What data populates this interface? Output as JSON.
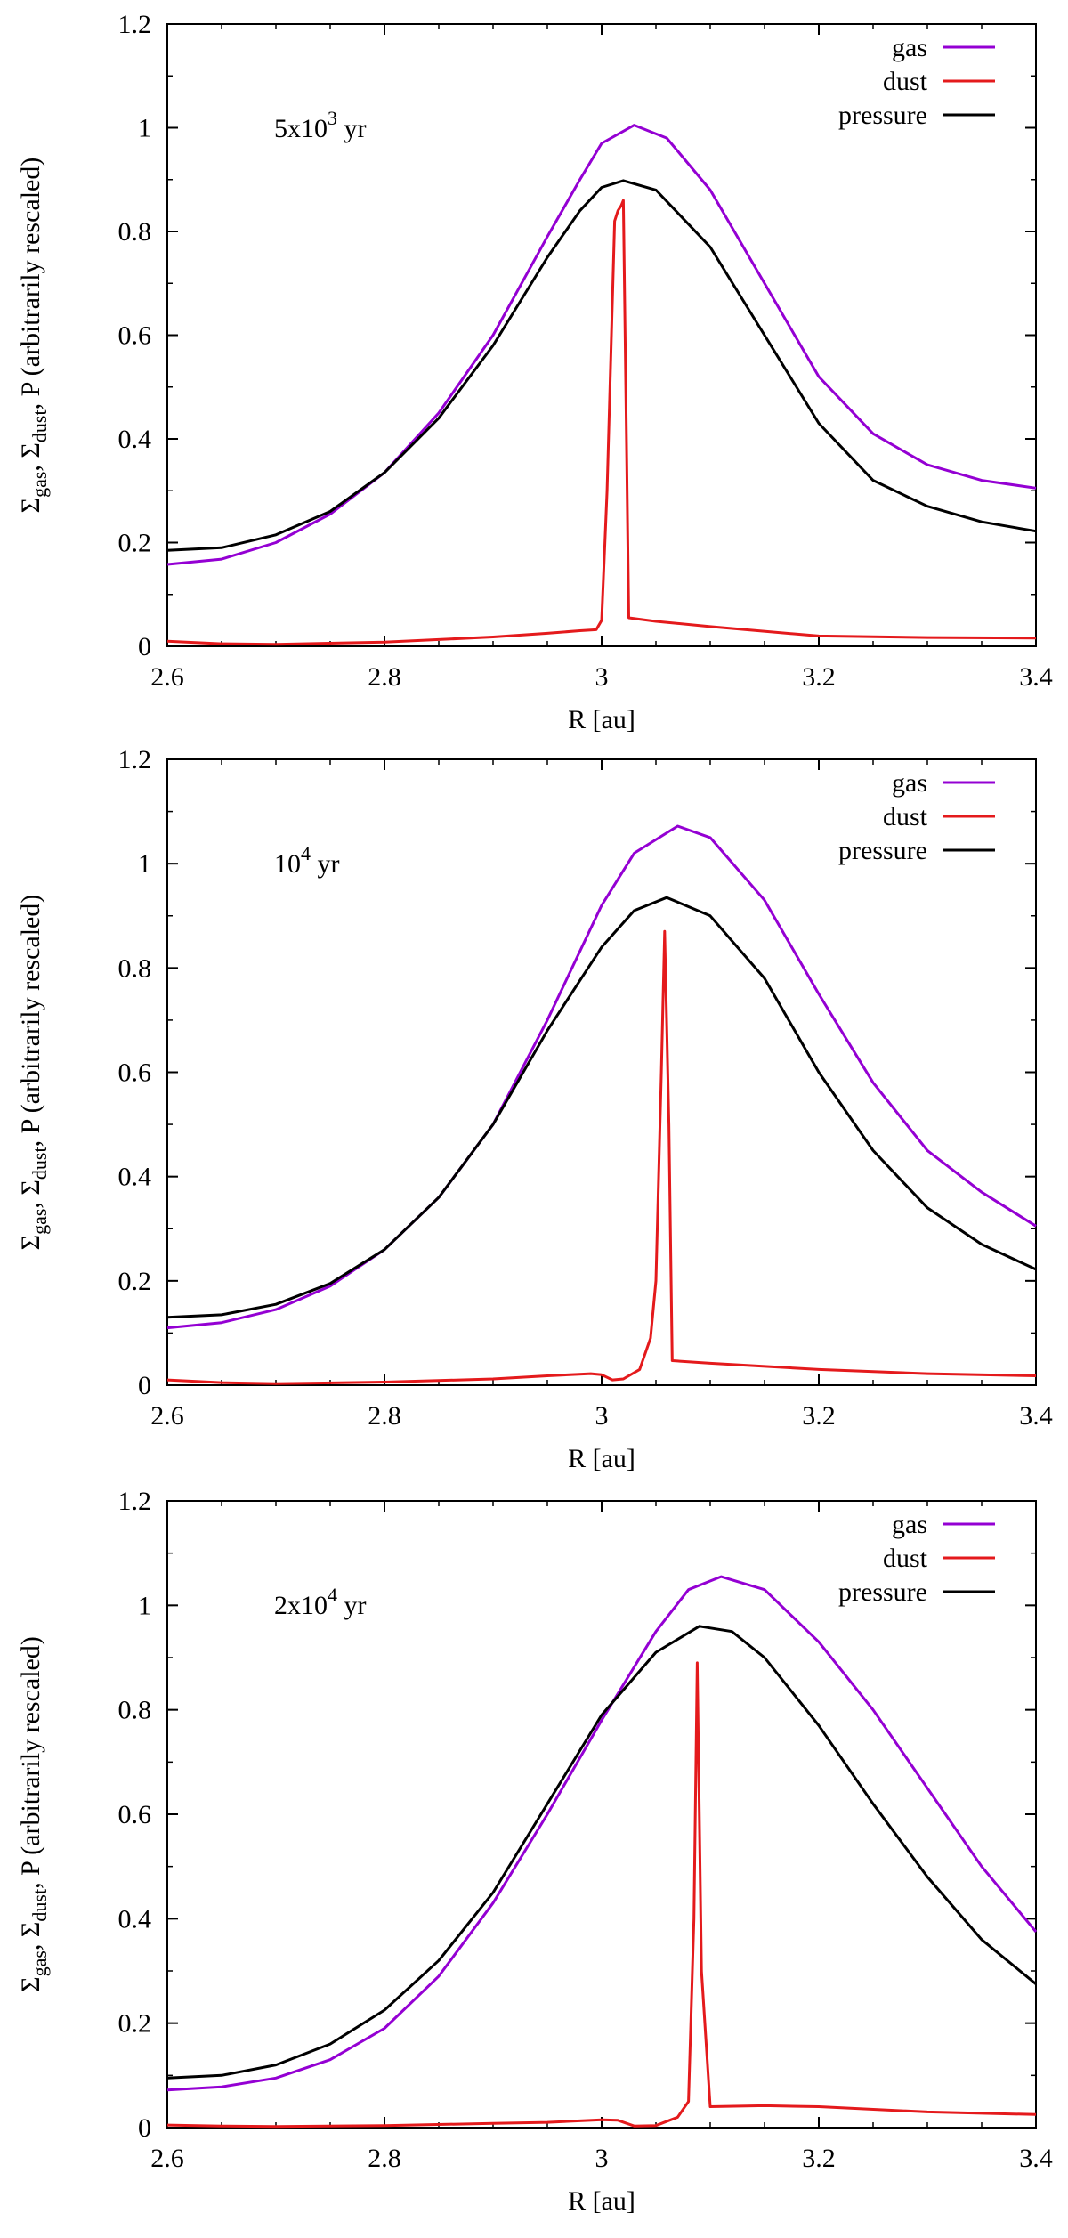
{
  "figure": {
    "description_free": true
  },
  "chart_data": [
    {
      "type": "line",
      "annotation": {
        "base": "5x10",
        "exp": "3",
        "unit": " yr"
      },
      "xlabel": "R [au]",
      "ylabel": {
        "sigma": "Σ",
        "gas": "gas",
        "dust": "dust",
        "rest": ", P (arbitrarily rescaled)"
      },
      "xlim": [
        2.6,
        3.4
      ],
      "ylim": [
        0,
        1.2
      ],
      "xticks": [
        2.6,
        2.8,
        3.0,
        3.2,
        3.4
      ],
      "xtick_labels": [
        "2.6",
        "2.8",
        "3",
        "3.2",
        "3.4"
      ],
      "yticks": [
        0,
        0.2,
        0.4,
        0.6,
        0.8,
        1.0,
        1.2
      ],
      "ytick_labels": [
        "0",
        "0.2",
        "0.4",
        "0.6",
        "0.8",
        "1",
        "1.2"
      ],
      "series": [
        {
          "name": "gas",
          "color": "#9400d3",
          "x": [
            2.6,
            2.65,
            2.7,
            2.75,
            2.8,
            2.85,
            2.9,
            2.95,
            2.98,
            3.0,
            3.03,
            3.06,
            3.1,
            3.15,
            3.2,
            3.25,
            3.3,
            3.35,
            3.4
          ],
          "y": [
            0.158,
            0.168,
            0.2,
            0.255,
            0.335,
            0.45,
            0.6,
            0.79,
            0.9,
            0.97,
            1.005,
            0.98,
            0.88,
            0.7,
            0.52,
            0.41,
            0.35,
            0.32,
            0.305
          ]
        },
        {
          "name": "dust",
          "color": "#e41a1c",
          "x": [
            2.6,
            2.65,
            2.7,
            2.8,
            2.9,
            2.95,
            2.98,
            2.995,
            3.0,
            3.005,
            3.012,
            3.015,
            3.018,
            3.02,
            3.025,
            3.05,
            3.1,
            3.2,
            3.3,
            3.4
          ],
          "y": [
            0.01,
            0.005,
            0.004,
            0.008,
            0.018,
            0.025,
            0.03,
            0.032,
            0.05,
            0.3,
            0.82,
            0.84,
            0.85,
            0.86,
            0.055,
            0.048,
            0.038,
            0.02,
            0.017,
            0.016
          ]
        },
        {
          "name": "pressure",
          "color": "#000000",
          "x": [
            2.6,
            2.65,
            2.7,
            2.75,
            2.8,
            2.85,
            2.9,
            2.95,
            2.98,
            3.0,
            3.02,
            3.05,
            3.1,
            3.15,
            3.2,
            3.25,
            3.3,
            3.35,
            3.4
          ],
          "y": [
            0.185,
            0.19,
            0.215,
            0.26,
            0.335,
            0.44,
            0.58,
            0.75,
            0.84,
            0.885,
            0.898,
            0.88,
            0.77,
            0.6,
            0.43,
            0.32,
            0.27,
            0.24,
            0.222
          ]
        }
      ]
    },
    {
      "type": "line",
      "annotation": {
        "base": "10",
        "exp": "4",
        "unit": " yr"
      },
      "xlabel": "R [au]",
      "ylabel": {
        "sigma": "Σ",
        "gas": "gas",
        "dust": "dust",
        "rest": ", P (arbitrarily rescaled)"
      },
      "xlim": [
        2.6,
        3.4
      ],
      "ylim": [
        0,
        1.2
      ],
      "xticks": [
        2.6,
        2.8,
        3.0,
        3.2,
        3.4
      ],
      "xtick_labels": [
        "2.6",
        "2.8",
        "3",
        "3.2",
        "3.4"
      ],
      "yticks": [
        0,
        0.2,
        0.4,
        0.6,
        0.8,
        1.0,
        1.2
      ],
      "ytick_labels": [
        "0",
        "0.2",
        "0.4",
        "0.6",
        "0.8",
        "1",
        "1.2"
      ],
      "series": [
        {
          "name": "gas",
          "color": "#9400d3",
          "x": [
            2.6,
            2.65,
            2.7,
            2.75,
            2.8,
            2.85,
            2.9,
            2.95,
            3.0,
            3.03,
            3.07,
            3.1,
            3.15,
            3.2,
            3.25,
            3.3,
            3.35,
            3.4
          ],
          "y": [
            0.11,
            0.12,
            0.145,
            0.19,
            0.26,
            0.36,
            0.5,
            0.7,
            0.92,
            1.02,
            1.072,
            1.05,
            0.93,
            0.75,
            0.58,
            0.45,
            0.37,
            0.305
          ]
        },
        {
          "name": "dust",
          "color": "#e41a1c",
          "x": [
            2.6,
            2.65,
            2.7,
            2.8,
            2.9,
            2.95,
            2.99,
            3.0,
            3.01,
            3.02,
            3.035,
            3.045,
            3.05,
            3.055,
            3.058,
            3.062,
            3.065,
            3.1,
            3.2,
            3.3,
            3.4
          ],
          "y": [
            0.01,
            0.005,
            0.003,
            0.006,
            0.012,
            0.018,
            0.022,
            0.02,
            0.01,
            0.012,
            0.03,
            0.09,
            0.2,
            0.6,
            0.87,
            0.5,
            0.047,
            0.042,
            0.03,
            0.022,
            0.018
          ]
        },
        {
          "name": "pressure",
          "color": "#000000",
          "x": [
            2.6,
            2.65,
            2.7,
            2.75,
            2.8,
            2.85,
            2.9,
            2.95,
            3.0,
            3.03,
            3.06,
            3.1,
            3.15,
            3.2,
            3.25,
            3.3,
            3.35,
            3.4
          ],
          "y": [
            0.13,
            0.135,
            0.155,
            0.195,
            0.26,
            0.36,
            0.5,
            0.68,
            0.84,
            0.91,
            0.935,
            0.9,
            0.78,
            0.6,
            0.45,
            0.34,
            0.27,
            0.222
          ]
        }
      ]
    },
    {
      "type": "line",
      "annotation": {
        "base": "2x10",
        "exp": "4",
        "unit": " yr"
      },
      "xlabel": "R [au]",
      "ylabel": {
        "sigma": "Σ",
        "gas": "gas",
        "dust": "dust",
        "rest": ", P (arbitrarily rescaled)"
      },
      "xlim": [
        2.6,
        3.4
      ],
      "ylim": [
        0,
        1.2
      ],
      "xticks": [
        2.6,
        2.8,
        3.0,
        3.2,
        3.4
      ],
      "xtick_labels": [
        "2.6",
        "2.8",
        "3",
        "3.2",
        "3.4"
      ],
      "yticks": [
        0,
        0.2,
        0.4,
        0.6,
        0.8,
        1.0,
        1.2
      ],
      "ytick_labels": [
        "0",
        "0.2",
        "0.4",
        "0.6",
        "0.8",
        "1",
        "1.2"
      ],
      "series": [
        {
          "name": "gas",
          "color": "#9400d3",
          "x": [
            2.6,
            2.65,
            2.7,
            2.75,
            2.8,
            2.85,
            2.9,
            2.95,
            3.0,
            3.05,
            3.08,
            3.11,
            3.15,
            3.2,
            3.25,
            3.3,
            3.35,
            3.4
          ],
          "y": [
            0.072,
            0.078,
            0.095,
            0.13,
            0.19,
            0.29,
            0.43,
            0.6,
            0.78,
            0.95,
            1.03,
            1.055,
            1.03,
            0.93,
            0.8,
            0.65,
            0.5,
            0.375
          ]
        },
        {
          "name": "dust",
          "color": "#e41a1c",
          "x": [
            2.6,
            2.65,
            2.7,
            2.8,
            2.9,
            2.95,
            3.0,
            3.015,
            3.03,
            3.05,
            3.07,
            3.08,
            3.085,
            3.088,
            3.092,
            3.1,
            3.15,
            3.2,
            3.3,
            3.4
          ],
          "y": [
            0.005,
            0.003,
            0.002,
            0.004,
            0.008,
            0.01,
            0.015,
            0.014,
            0.003,
            0.004,
            0.02,
            0.05,
            0.4,
            0.89,
            0.3,
            0.04,
            0.042,
            0.04,
            0.03,
            0.025
          ]
        },
        {
          "name": "pressure",
          "color": "#000000",
          "x": [
            2.6,
            2.65,
            2.7,
            2.75,
            2.8,
            2.85,
            2.9,
            2.95,
            3.0,
            3.05,
            3.09,
            3.12,
            3.15,
            3.2,
            3.25,
            3.3,
            3.35,
            3.4
          ],
          "y": [
            0.095,
            0.1,
            0.12,
            0.16,
            0.225,
            0.32,
            0.45,
            0.62,
            0.79,
            0.91,
            0.96,
            0.95,
            0.9,
            0.77,
            0.62,
            0.48,
            0.36,
            0.275
          ]
        }
      ]
    }
  ]
}
